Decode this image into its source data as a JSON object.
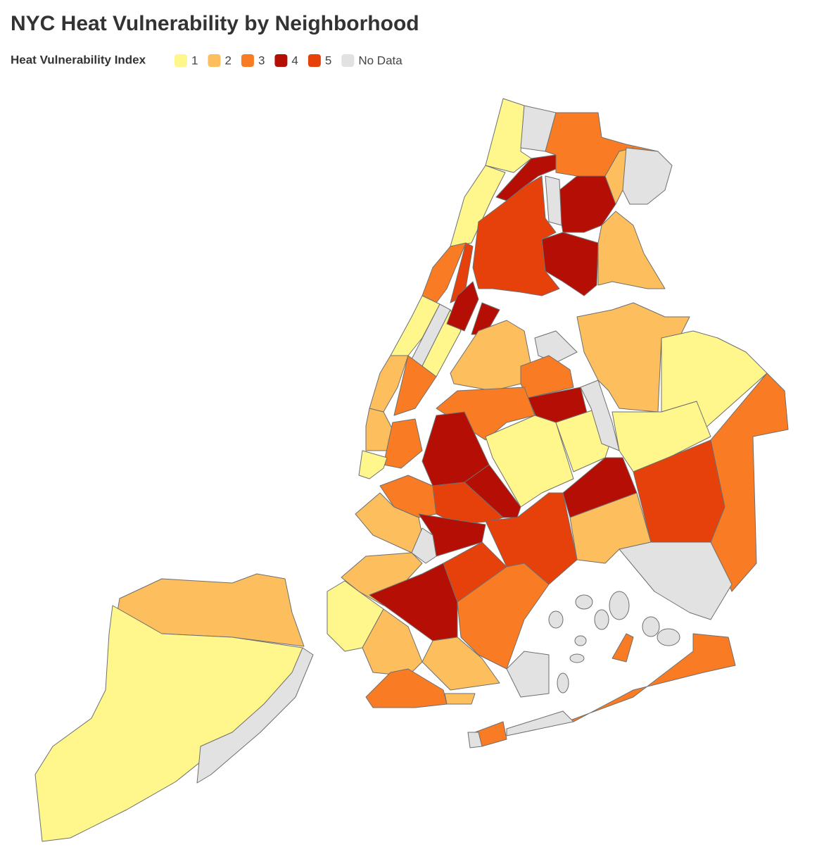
{
  "title": "NYC Heat Vulnerability by Neighborhood",
  "legend": {
    "title": "Heat Vulnerability Index",
    "items": [
      {
        "value": 1,
        "color": "#fff68c"
      },
      {
        "value": 2,
        "color": "#fdbe5e"
      },
      {
        "value": 3,
        "color": "#f97c24"
      },
      {
        "value": 4,
        "color": "#b50f05"
      },
      {
        "value": 5,
        "color": "#e6400b"
      },
      {
        "label": "No Data",
        "color": "#e2e2e2"
      }
    ]
  },
  "regions": {
    "values": [
      2,
      1,
      null,
      1,
      null,
      1,
      3,
      1,
      null,
      5,
      1,
      2,
      3,
      2,
      3,
      1,
      4,
      3,
      4,
      null,
      2,
      null,
      2,
      4,
      5,
      4,
      4,
      2,
      null,
      3,
      4,
      2,
      1,
      1,
      3,
      5,
      4,
      2,
      null,
      3,
      1,
      1,
      null,
      4,
      4,
      3,
      5,
      2,
      4,
      5,
      5,
      2,
      null,
      4,
      3,
      1,
      2,
      2,
      3,
      2,
      3,
      null,
      3,
      null,
      3,
      null
    ]
  }
}
